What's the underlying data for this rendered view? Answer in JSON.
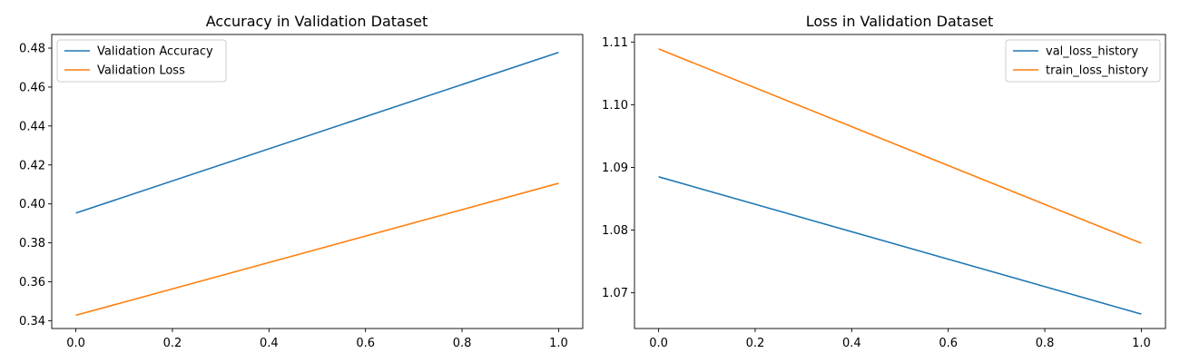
{
  "chart_data": [
    {
      "type": "line",
      "title": "Accuracy in Validation Dataset",
      "xlabel": "",
      "ylabel": "",
      "xlim": [
        -0.05,
        1.05
      ],
      "ylim": [
        0.336,
        0.487
      ],
      "xticks": [
        0.0,
        0.2,
        0.4,
        0.6,
        0.8,
        1.0
      ],
      "xtick_labels": [
        "0.0",
        "0.2",
        "0.4",
        "0.6",
        "0.8",
        "1.0"
      ],
      "yticks": [
        0.34,
        0.36,
        0.38,
        0.4,
        0.42,
        0.44,
        0.46,
        0.48
      ],
      "ytick_labels": [
        "0.34",
        "0.36",
        "0.38",
        "0.40",
        "0.42",
        "0.44",
        "0.46",
        "0.48"
      ],
      "grid": false,
      "legend": "upper-left",
      "series": [
        {
          "name": "Validation Accuracy",
          "color": "#1f77b4",
          "x": [
            0,
            1
          ],
          "y": [
            0.3953,
            0.4778
          ]
        },
        {
          "name": "Validation Loss",
          "color": "#ff7f0e",
          "x": [
            0,
            1
          ],
          "y": [
            0.3428,
            0.4106
          ]
        }
      ]
    },
    {
      "type": "line",
      "title": "Loss in Validation Dataset",
      "xlabel": "",
      "ylabel": "",
      "xlim": [
        -0.05,
        1.05
      ],
      "ylim": [
        1.0643,
        1.1112
      ],
      "xticks": [
        0.0,
        0.2,
        0.4,
        0.6,
        0.8,
        1.0
      ],
      "xtick_labels": [
        "0.0",
        "0.2",
        "0.4",
        "0.6",
        "0.8",
        "1.0"
      ],
      "yticks": [
        1.07,
        1.08,
        1.09,
        1.1,
        1.11
      ],
      "ytick_labels": [
        "1.07",
        "1.08",
        "1.09",
        "1.10",
        "1.11"
      ],
      "grid": false,
      "legend": "upper-right",
      "series": [
        {
          "name": "val_loss_history",
          "color": "#1f77b4",
          "x": [
            0,
            1
          ],
          "y": [
            1.0885,
            1.0666
          ]
        },
        {
          "name": "train_loss_history",
          "color": "#ff7f0e",
          "x": [
            0,
            1
          ],
          "y": [
            1.1089,
            1.0779
          ]
        }
      ]
    }
  ]
}
